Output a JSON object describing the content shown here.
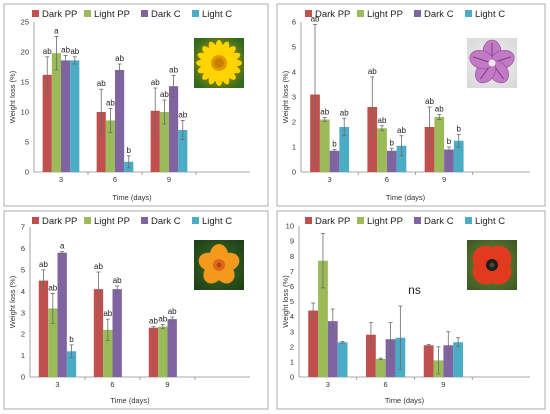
{
  "colors": {
    "dark_pp": "#c0504d",
    "light_pp": "#9bbb59",
    "dark_c": "#8064a2",
    "light_c": "#4bacc6"
  },
  "chart_data": [
    {
      "type": "bar",
      "icon": "yellow-daisy-flower-icon",
      "ylabel": "Weight loss (%)",
      "xlabel": "Time (days)",
      "categories": [
        "3",
        "6",
        "9"
      ],
      "ylim": [
        0,
        25
      ],
      "yticks": [
        0,
        5,
        10,
        15,
        20,
        25
      ],
      "legend_position": "top",
      "series": [
        {
          "name": "Dark PP",
          "values": [
            16.2,
            10.0,
            10.2
          ],
          "errors": [
            3.0,
            3.8,
            3.8
          ],
          "labels": [
            "ab",
            "ab",
            "ab"
          ]
        },
        {
          "name": "Light PP",
          "values": [
            19.8,
            8.6,
            10.0
          ],
          "errors": [
            2.8,
            2.0,
            2.0
          ],
          "labels": [
            "a",
            "ab",
            "ab"
          ]
        },
        {
          "name": "Dark C",
          "values": [
            18.6,
            17.0,
            14.3
          ],
          "errors": [
            0.8,
            1.0,
            1.8
          ],
          "labels": [
            "ab",
            "ab",
            "ab"
          ]
        },
        {
          "name": "Light C",
          "values": [
            18.6,
            1.7,
            7.0
          ],
          "errors": [
            0.6,
            1.0,
            1.6
          ],
          "labels": [
            "ab",
            "b",
            "ab"
          ]
        }
      ]
    },
    {
      "type": "bar",
      "icon": "purple-mallow-flower-icon",
      "ylabel": "Weight loss (%)",
      "xlabel": "Time (days)",
      "categories": [
        "3",
        "6",
        "9"
      ],
      "ylim": [
        0,
        6
      ],
      "yticks": [
        0,
        1,
        2,
        3,
        4,
        5,
        6
      ],
      "legend_position": "top",
      "series": [
        {
          "name": "Dark PP",
          "values": [
            3.1,
            2.6,
            1.8
          ],
          "errors": [
            2.8,
            1.2,
            0.8
          ],
          "labels": [
            "ab",
            "ab",
            "ab"
          ]
        },
        {
          "name": "Light PP",
          "values": [
            2.1,
            1.75,
            2.2
          ],
          "errors": [
            0.08,
            0.1,
            0.1
          ],
          "labels": [
            "ab",
            "ab",
            "ab"
          ]
        },
        {
          "name": "Dark C",
          "values": [
            0.85,
            0.85,
            0.9
          ],
          "errors": [
            0.05,
            0.1,
            0.1
          ],
          "labels": [
            "b",
            "b",
            "b"
          ]
        },
        {
          "name": "Light C",
          "values": [
            1.8,
            1.05,
            1.25
          ],
          "errors": [
            0.35,
            0.4,
            0.25
          ],
          "labels": [
            "ab",
            "ab",
            "b"
          ]
        }
      ]
    },
    {
      "type": "bar",
      "icon": "orange-nasturtium-flower-icon",
      "ylabel": "Weight loss (%)",
      "xlabel": "Time (days)",
      "categories": [
        "3",
        "6",
        "9"
      ],
      "ylim": [
        0,
        7
      ],
      "yticks": [
        0,
        1,
        2,
        3,
        4,
        5,
        6,
        7
      ],
      "legend_position": "top",
      "series": [
        {
          "name": "Dark PP",
          "values": [
            4.5,
            4.1,
            2.3
          ],
          "errors": [
            0.5,
            0.8,
            0.05
          ],
          "labels": [
            "ab",
            "ab",
            "ab"
          ]
        },
        {
          "name": "Light PP",
          "values": [
            3.2,
            2.2,
            2.35
          ],
          "errors": [
            0.7,
            0.5,
            0.1
          ],
          "labels": [
            "ab",
            "ab",
            "ab"
          ]
        },
        {
          "name": "Dark C",
          "values": [
            5.8,
            4.1,
            2.7
          ],
          "errors": [
            0.05,
            0.15,
            0.1
          ],
          "labels": [
            "a",
            "ab",
            "ab"
          ]
        },
        {
          "name": "Light C",
          "values": [
            1.2,
            null,
            null
          ],
          "errors": [
            0.3,
            null,
            null
          ],
          "labels": [
            "b",
            "",
            ""
          ]
        }
      ]
    },
    {
      "type": "bar",
      "icon": "red-poppy-flower-icon",
      "ylabel": "Weight loss (%)",
      "xlabel": "Time (days)",
      "categories": [
        "3",
        "6",
        "9"
      ],
      "ylim": [
        0,
        10
      ],
      "yticks": [
        0,
        1,
        2,
        3,
        4,
        5,
        6,
        7,
        8,
        9,
        10
      ],
      "legend_position": "top",
      "annotation": "ns",
      "series": [
        {
          "name": "Dark PP",
          "values": [
            4.4,
            2.8,
            2.1
          ],
          "errors": [
            0.5,
            0.8,
            0.05
          ],
          "labels": [
            "",
            "",
            ""
          ]
        },
        {
          "name": "Light PP",
          "values": [
            7.7,
            1.2,
            1.1
          ],
          "errors": [
            1.8,
            0.05,
            0.9
          ],
          "labels": [
            "",
            "",
            ""
          ]
        },
        {
          "name": "Dark C",
          "values": [
            3.7,
            2.5,
            2.1
          ],
          "errors": [
            0.8,
            1.1,
            0.9
          ],
          "labels": [
            "",
            "",
            ""
          ]
        },
        {
          "name": "Light C",
          "values": [
            2.3,
            2.6,
            2.3
          ],
          "errors": [
            0.05,
            2.1,
            0.3
          ],
          "labels": [
            "",
            "",
            ""
          ]
        }
      ]
    }
  ]
}
